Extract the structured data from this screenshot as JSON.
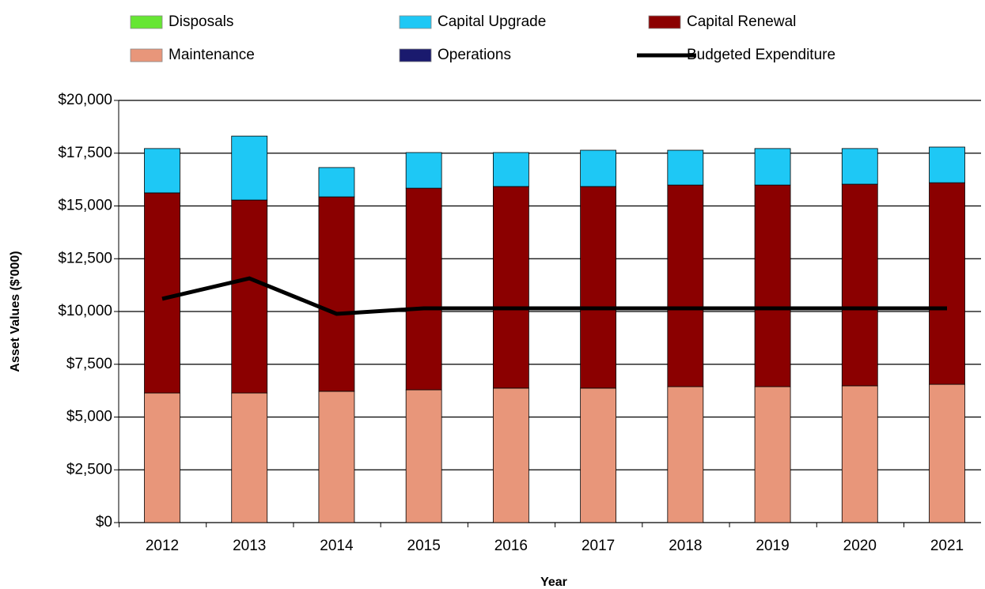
{
  "chart_data": {
    "type": "bar",
    "stacked": true,
    "x_label": "Year",
    "y_label": "Asset Values ($'000)",
    "categories": [
      "2012",
      "2013",
      "2014",
      "2015",
      "2016",
      "2017",
      "2018",
      "2019",
      "2020",
      "2021"
    ],
    "series": [
      {
        "name": "Disposals",
        "color": "#66e633",
        "values": [
          0,
          0,
          0,
          0,
          0,
          0,
          0,
          0,
          0,
          0
        ]
      },
      {
        "name": "Capital Upgrade",
        "color": "#1ec8f5",
        "values": [
          2100,
          3030,
          1390,
          1690,
          1610,
          1720,
          1650,
          1730,
          1690,
          1690
        ]
      },
      {
        "name": "Capital Renewal",
        "color": "#8b0000",
        "values": [
          9480,
          9140,
          9210,
          9550,
          9550,
          9550,
          9550,
          9550,
          9550,
          9550
        ]
      },
      {
        "name": "Maintenance",
        "color": "#e8967a",
        "values": [
          6140,
          6140,
          6220,
          6290,
          6370,
          6370,
          6440,
          6440,
          6480,
          6550
        ]
      },
      {
        "name": "Operations",
        "color": "#1a1a6e",
        "values": [
          0,
          0,
          0,
          0,
          0,
          0,
          0,
          0,
          0,
          0
        ]
      },
      {
        "name": "Budgeted Expenditure",
        "color": "#000000",
        "type": "line",
        "values": [
          10600,
          11570,
          9890,
          10150,
          10150,
          10150,
          10150,
          10150,
          10150,
          10150
        ]
      }
    ],
    "ylim": [
      0,
      20000
    ],
    "yticks": [
      {
        "value": 0,
        "label": "$0"
      },
      {
        "value": 2500,
        "label": "$2,500"
      },
      {
        "value": 5000,
        "label": "$5,000"
      },
      {
        "value": 7500,
        "label": "$7,500"
      },
      {
        "value": 10000,
        "label": "$10,000"
      },
      {
        "value": 12500,
        "label": "$12,500"
      },
      {
        "value": 15000,
        "label": "$15,000"
      },
      {
        "value": 17500,
        "label": "$17,500"
      },
      {
        "value": 20000,
        "label": "$20,000"
      }
    ],
    "grid": true
  }
}
